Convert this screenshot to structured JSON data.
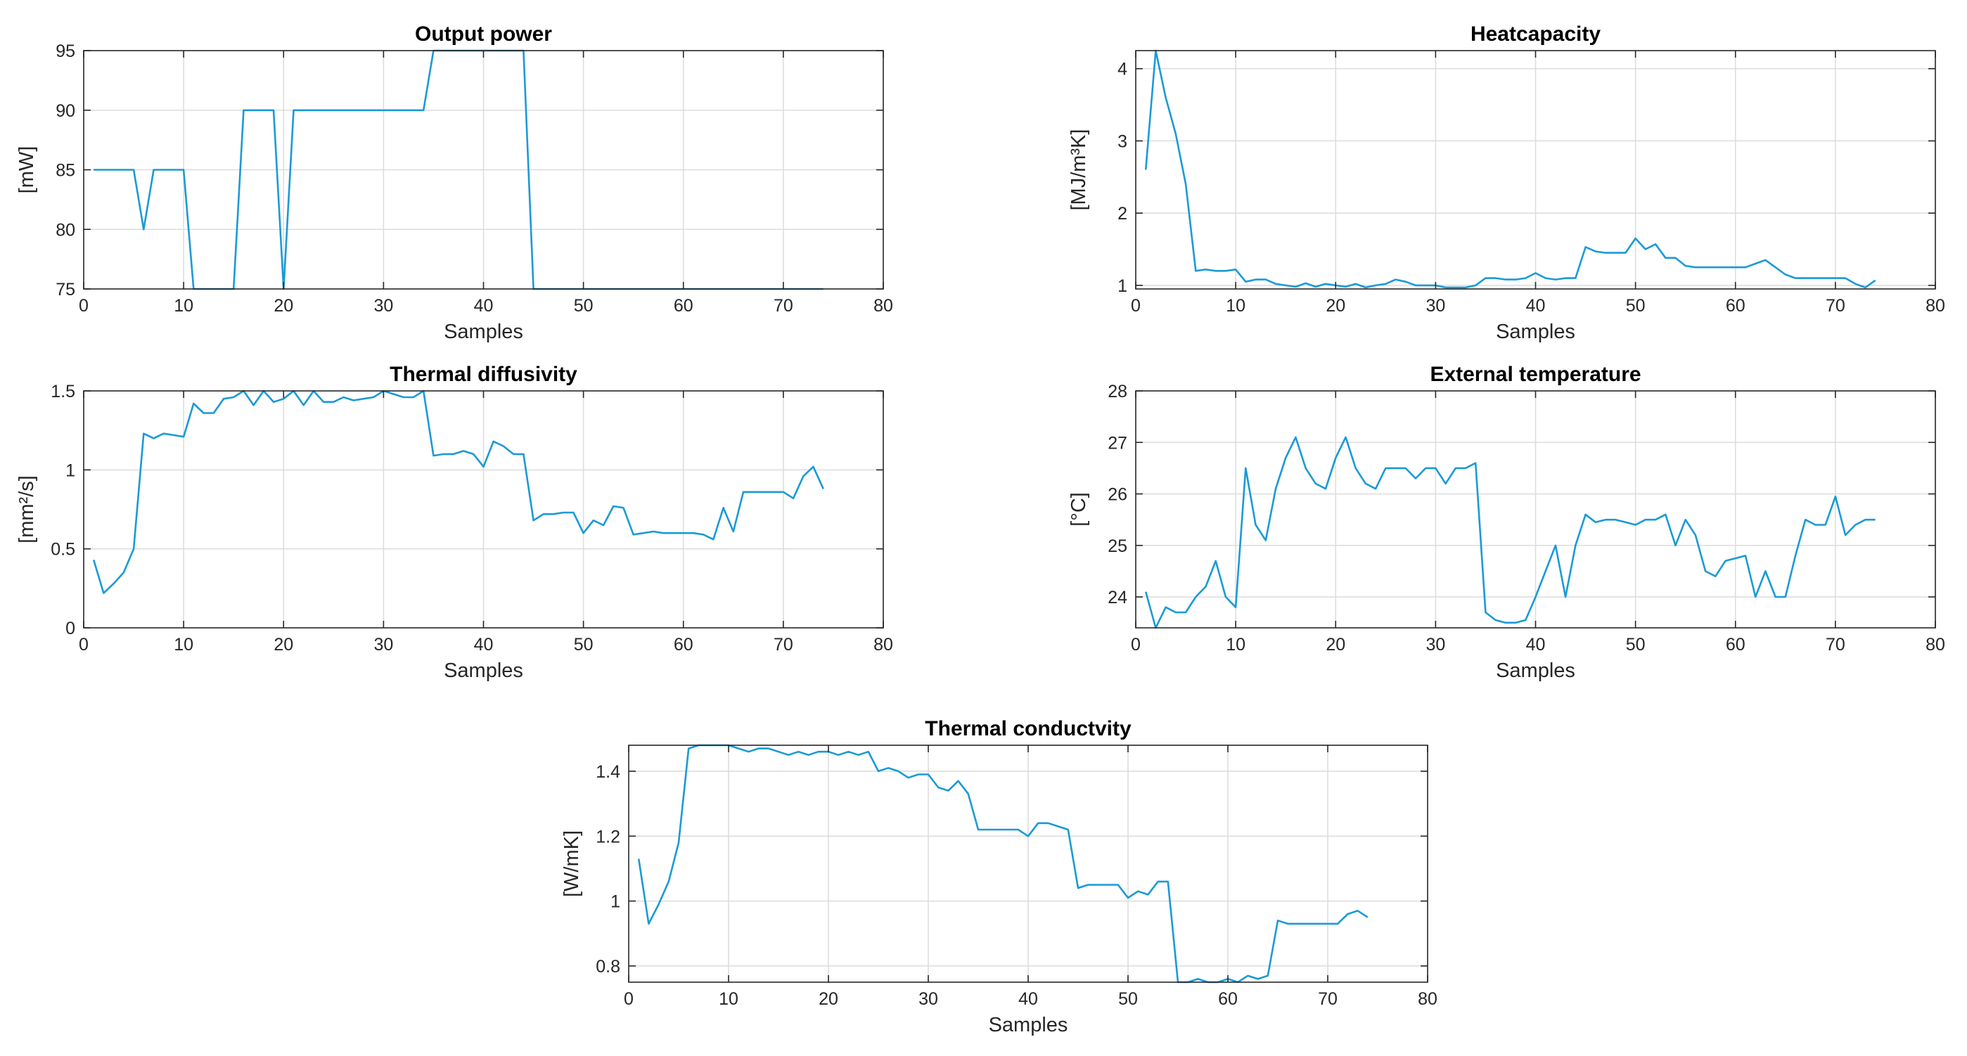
{
  "chart_data": [
    {
      "id": "output-power",
      "type": "line",
      "title": "Output power",
      "xlabel": "Samples",
      "ylabel": "[mW]",
      "xlim": [
        0,
        80
      ],
      "ylim": [
        75,
        95
      ],
      "xticks": [
        0,
        10,
        20,
        30,
        40,
        50,
        60,
        70,
        80
      ],
      "yticks": [
        75,
        80,
        85,
        90,
        95
      ],
      "grid": true,
      "series": [
        {
          "name": "Output power",
          "color": "#1a9ad6",
          "x": [
            1,
            2,
            3,
            4,
            5,
            6,
            7,
            8,
            9,
            10,
            11,
            12,
            13,
            14,
            15,
            16,
            17,
            18,
            19,
            20,
            21,
            22,
            23,
            24,
            25,
            26,
            27,
            28,
            29,
            30,
            31,
            32,
            33,
            34,
            35,
            36,
            37,
            38,
            39,
            40,
            41,
            42,
            43,
            44,
            45,
            46,
            47,
            48,
            49,
            50,
            51,
            52,
            53,
            54,
            55,
            56,
            57,
            58,
            59,
            60,
            61,
            62,
            63,
            64,
            65,
            66,
            67,
            68,
            69,
            70,
            71,
            72,
            73,
            74
          ],
          "y": [
            85,
            85,
            85,
            85,
            85,
            80,
            85,
            85,
            85,
            85,
            75,
            75,
            75,
            75,
            75,
            90,
            90,
            90,
            90,
            75,
            90,
            90,
            90,
            90,
            90,
            90,
            90,
            90,
            90,
            90,
            90,
            90,
            90,
            90,
            95,
            95,
            95,
            95,
            95,
            95,
            95,
            95,
            95,
            95,
            75,
            75,
            75,
            75,
            75,
            75,
            75,
            75,
            75,
            75,
            75,
            75,
            75,
            75,
            75,
            75,
            75,
            75,
            75,
            75,
            75,
            75,
            75,
            75,
            75,
            75,
            75,
            75,
            75,
            75
          ]
        }
      ]
    },
    {
      "id": "heatcapacity",
      "type": "line",
      "title": "Heatcapacity",
      "xlabel": "Samples",
      "ylabel": "[MJ/m³K]",
      "xlim": [
        0,
        80
      ],
      "ylim": [
        0.95,
        4.25
      ],
      "xticks": [
        0,
        10,
        20,
        30,
        40,
        50,
        60,
        70,
        80
      ],
      "yticks": [
        1,
        2,
        3,
        4
      ],
      "grid": true,
      "series": [
        {
          "name": "Heatcapacity",
          "color": "#1a9ad6",
          "x": [
            1,
            2,
            3,
            4,
            5,
            6,
            7,
            8,
            9,
            10,
            11,
            12,
            13,
            14,
            15,
            16,
            17,
            18,
            19,
            20,
            21,
            22,
            23,
            24,
            25,
            26,
            27,
            28,
            29,
            30,
            31,
            32,
            33,
            34,
            35,
            36,
            37,
            38,
            39,
            40,
            41,
            42,
            43,
            44,
            45,
            46,
            47,
            48,
            49,
            50,
            51,
            52,
            53,
            54,
            55,
            56,
            57,
            58,
            59,
            60,
            61,
            62,
            63,
            64,
            65,
            66,
            67,
            68,
            69,
            70,
            71,
            72,
            73,
            74
          ],
          "y": [
            2.6,
            4.25,
            3.6,
            3.1,
            2.4,
            1.2,
            1.22,
            1.2,
            1.2,
            1.22,
            1.05,
            1.08,
            1.08,
            1.02,
            1.0,
            0.98,
            1.03,
            0.98,
            1.02,
            1.0,
            0.98,
            1.02,
            0.97,
            1.0,
            1.02,
            1.08,
            1.05,
            1.0,
            1.0,
            1.0,
            0.97,
            0.97,
            0.97,
            1.0,
            1.1,
            1.1,
            1.08,
            1.08,
            1.1,
            1.17,
            1.1,
            1.08,
            1.1,
            1.1,
            1.53,
            1.47,
            1.45,
            1.45,
            1.45,
            1.65,
            1.5,
            1.57,
            1.38,
            1.38,
            1.27,
            1.25,
            1.25,
            1.25,
            1.25,
            1.25,
            1.25,
            1.3,
            1.35,
            1.25,
            1.15,
            1.1,
            1.1,
            1.1,
            1.1,
            1.1,
            1.1,
            1.02,
            0.97,
            1.07
          ]
        }
      ]
    },
    {
      "id": "thermal-diffusivity",
      "type": "line",
      "title": "Thermal diffusivity",
      "xlabel": "Samples",
      "ylabel": "[mm²/s]",
      "xlim": [
        0,
        80
      ],
      "ylim": [
        0,
        1.5
      ],
      "xticks": [
        0,
        10,
        20,
        30,
        40,
        50,
        60,
        70,
        80
      ],
      "yticks": [
        0,
        0.5,
        1,
        1.5
      ],
      "grid": true,
      "series": [
        {
          "name": "Thermal diffusivity",
          "color": "#1a9ad6",
          "x": [
            1,
            2,
            3,
            4,
            5,
            6,
            7,
            8,
            9,
            10,
            11,
            12,
            13,
            14,
            15,
            16,
            17,
            18,
            19,
            20,
            21,
            22,
            23,
            24,
            25,
            26,
            27,
            28,
            29,
            30,
            31,
            32,
            33,
            34,
            35,
            36,
            37,
            38,
            39,
            40,
            41,
            42,
            43,
            44,
            45,
            46,
            47,
            48,
            49,
            50,
            51,
            52,
            53,
            54,
            55,
            56,
            57,
            58,
            59,
            60,
            61,
            62,
            63,
            64,
            65,
            66,
            67,
            68,
            69,
            70,
            71,
            72,
            73,
            74
          ],
          "y": [
            0.43,
            0.22,
            0.28,
            0.35,
            0.5,
            1.23,
            1.2,
            1.23,
            1.22,
            1.21,
            1.42,
            1.36,
            1.36,
            1.45,
            1.46,
            1.5,
            1.41,
            1.5,
            1.43,
            1.45,
            1.5,
            1.41,
            1.5,
            1.43,
            1.43,
            1.46,
            1.44,
            1.45,
            1.46,
            1.5,
            1.48,
            1.46,
            1.46,
            1.5,
            1.09,
            1.1,
            1.1,
            1.12,
            1.1,
            1.02,
            1.18,
            1.15,
            1.1,
            1.1,
            0.68,
            0.72,
            0.72,
            0.73,
            0.73,
            0.6,
            0.68,
            0.65,
            0.77,
            0.76,
            0.59,
            0.6,
            0.61,
            0.6,
            0.6,
            0.6,
            0.6,
            0.59,
            0.56,
            0.76,
            0.61,
            0.86,
            0.86,
            0.86,
            0.86,
            0.86,
            0.82,
            0.96,
            1.02,
            0.88
          ]
        }
      ]
    },
    {
      "id": "external-temperature",
      "type": "line",
      "title": "External temperature",
      "xlabel": "Samples",
      "ylabel": "[°C]",
      "xlim": [
        0,
        80
      ],
      "ylim": [
        23.4,
        28
      ],
      "xticks": [
        0,
        10,
        20,
        30,
        40,
        50,
        60,
        70,
        80
      ],
      "yticks": [
        24,
        25,
        26,
        27,
        28
      ],
      "grid": true,
      "series": [
        {
          "name": "External temperature",
          "color": "#1a9ad6",
          "x": [
            1,
            2,
            3,
            4,
            5,
            6,
            7,
            8,
            9,
            10,
            11,
            12,
            13,
            14,
            15,
            16,
            17,
            18,
            19,
            20,
            21,
            22,
            23,
            24,
            25,
            26,
            27,
            28,
            29,
            30,
            31,
            32,
            33,
            34,
            35,
            36,
            37,
            38,
            39,
            40,
            41,
            42,
            43,
            44,
            45,
            46,
            47,
            48,
            49,
            50,
            51,
            52,
            53,
            54,
            55,
            56,
            57,
            58,
            59,
            60,
            61,
            62,
            63,
            64,
            65,
            66,
            67,
            68,
            69,
            70,
            71,
            72,
            73,
            74
          ],
          "y": [
            24.1,
            23.4,
            23.8,
            23.7,
            23.7,
            24.0,
            24.2,
            24.7,
            24.0,
            23.8,
            26.5,
            25.4,
            25.1,
            26.1,
            26.7,
            27.1,
            26.5,
            26.2,
            26.1,
            26.7,
            27.1,
            26.5,
            26.2,
            26.1,
            26.5,
            26.5,
            26.5,
            26.3,
            26.5,
            26.5,
            26.2,
            26.5,
            26.5,
            26.6,
            23.7,
            23.55,
            23.5,
            23.5,
            23.55,
            24.0,
            24.5,
            25.0,
            24.0,
            25.0,
            25.6,
            25.45,
            25.5,
            25.5,
            25.45,
            25.4,
            25.5,
            25.5,
            25.6,
            25.0,
            25.5,
            25.2,
            24.5,
            24.4,
            24.7,
            24.75,
            24.8,
            24.0,
            24.5,
            24.0,
            24.0,
            24.8,
            25.5,
            25.4,
            25.4,
            25.95,
            25.2,
            25.4,
            25.5,
            25.5
          ]
        }
      ]
    },
    {
      "id": "thermal-conductivity",
      "type": "line",
      "title": "Thermal conductvity",
      "xlabel": "Samples",
      "ylabel": "[W/mK]",
      "xlim": [
        0,
        80
      ],
      "ylim": [
        0.75,
        1.48
      ],
      "xticks": [
        0,
        10,
        20,
        30,
        40,
        50,
        60,
        70,
        80
      ],
      "yticks": [
        0.8,
        1,
        1.2,
        1.4
      ],
      "grid": true,
      "series": [
        {
          "name": "Thermal conductvity",
          "color": "#1a9ad6",
          "x": [
            1,
            2,
            3,
            4,
            5,
            6,
            7,
            8,
            9,
            10,
            11,
            12,
            13,
            14,
            15,
            16,
            17,
            18,
            19,
            20,
            21,
            22,
            23,
            24,
            25,
            26,
            27,
            28,
            29,
            30,
            31,
            32,
            33,
            34,
            35,
            36,
            37,
            38,
            39,
            40,
            41,
            42,
            43,
            44,
            45,
            46,
            47,
            48,
            49,
            50,
            51,
            52,
            53,
            54,
            55,
            56,
            57,
            58,
            59,
            60,
            61,
            62,
            63,
            64,
            65,
            66,
            67,
            68,
            69,
            70,
            71,
            72,
            73,
            74
          ],
          "y": [
            1.13,
            0.93,
            0.99,
            1.06,
            1.18,
            1.47,
            1.48,
            1.48,
            1.48,
            1.48,
            1.47,
            1.46,
            1.47,
            1.47,
            1.46,
            1.45,
            1.46,
            1.45,
            1.46,
            1.46,
            1.45,
            1.46,
            1.45,
            1.46,
            1.4,
            1.41,
            1.4,
            1.38,
            1.39,
            1.39,
            1.35,
            1.34,
            1.37,
            1.33,
            1.22,
            1.22,
            1.22,
            1.22,
            1.22,
            1.2,
            1.24,
            1.24,
            1.23,
            1.22,
            1.04,
            1.05,
            1.05,
            1.05,
            1.05,
            1.01,
            1.03,
            1.02,
            1.06,
            1.06,
            0.75,
            0.75,
            0.76,
            0.75,
            0.75,
            0.76,
            0.75,
            0.77,
            0.76,
            0.77,
            0.94,
            0.93,
            0.93,
            0.93,
            0.93,
            0.93,
            0.93,
            0.96,
            0.97,
            0.95
          ]
        }
      ]
    }
  ]
}
